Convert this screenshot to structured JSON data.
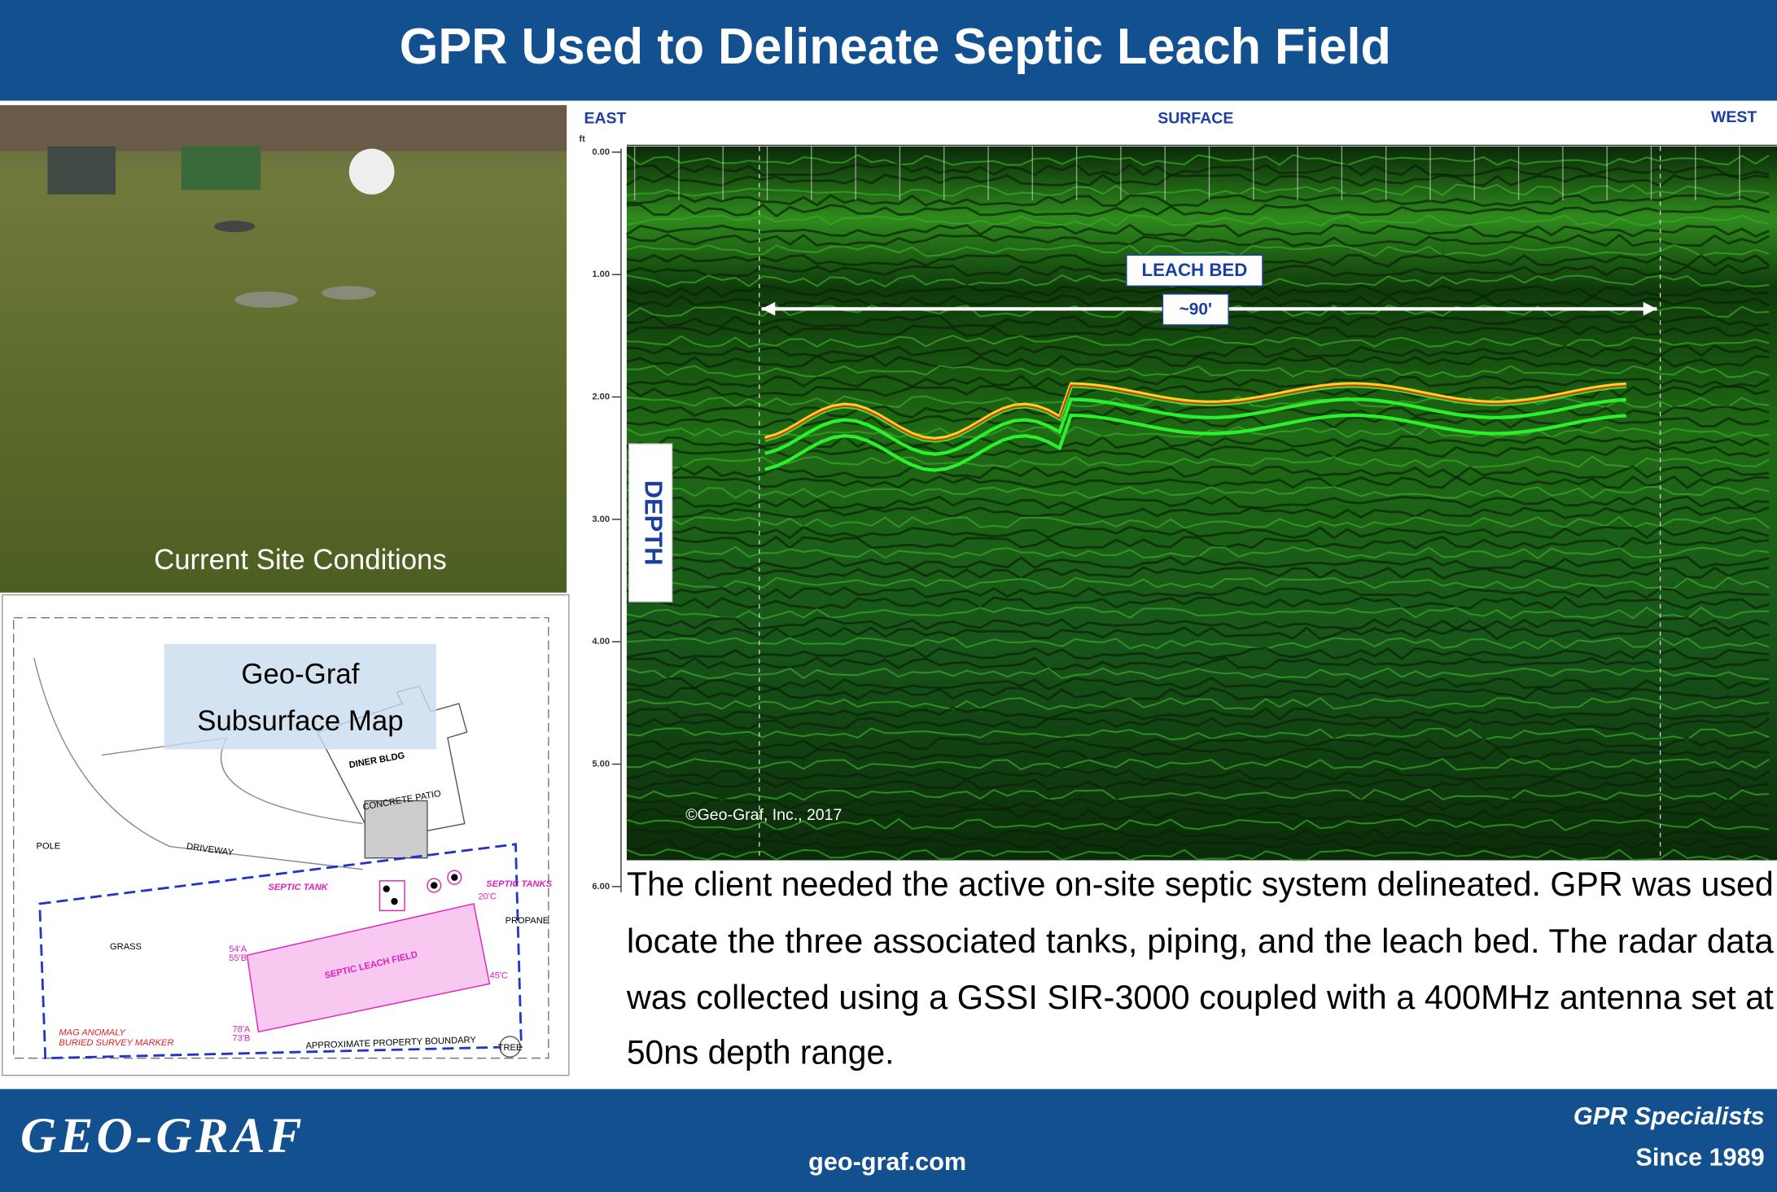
{
  "header": {
    "title": "GPR Used to Delineate Septic Leach Field"
  },
  "photo": {
    "caption": "Current Site Conditions"
  },
  "map": {
    "title_lines": [
      "Geo-Graf",
      "Subsurface Map"
    ],
    "building": "DINER BLDG",
    "patio": "CONCRETE PATIO",
    "driveway": "DRIVEWAY",
    "grass": "GRASS",
    "pole": "POLE",
    "septic_tank": "SEPTIC TANK",
    "septic_tanks": "SEPTIC TANKS",
    "leach_field": "SEPTIC LEACH FIELD",
    "propane": "PROPANE",
    "tree": "TREE",
    "boundary": "APPROXIMATE PROPERTY BOUNDARY",
    "anomaly_lines": [
      "MAG ANOMALY",
      "BURIED SURVEY MARKER"
    ],
    "measures": [
      "54'A",
      "55'B",
      "20'C",
      "45'C",
      "78'A",
      "73'B"
    ]
  },
  "radar": {
    "east": "EAST",
    "surface": "SURFACE",
    "west": "WEST",
    "unit": "ft",
    "depth_ticks": [
      "0.00",
      "1.00",
      "2.00",
      "3.00",
      "4.00",
      "5.00",
      "6.00"
    ],
    "depth_label": "DEPTH",
    "leach_bed": "LEACH BED",
    "span": "~90'",
    "copyright": "©Geo-Graf, Inc., 2017"
  },
  "description": {
    "lines": [
      "The client needed the active on-site septic system delineated. GPR was used",
      "locate  the three associated tanks, piping, and the leach bed. The radar data",
      "was collected using a GSSI SIR-3000 coupled with a 400MHz antenna set at",
      "50ns depth range."
    ]
  },
  "footer": {
    "logo": "GEO-GRAF",
    "website": "geo-graf.com",
    "tagline": "GPR Specialists",
    "since": "Since 1989"
  }
}
